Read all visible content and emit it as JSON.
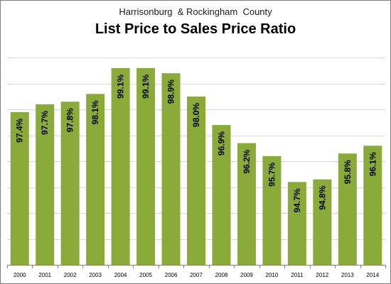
{
  "chart_data": {
    "type": "bar",
    "subtitle": "Harrisonburg  & Rockingham  County",
    "title": "List Price to Sales Price Ratio",
    "xlabel": "",
    "ylabel": "",
    "categories": [
      "2000",
      "2001",
      "2002",
      "2003",
      "2004",
      "2005",
      "2006",
      "2007",
      "2008",
      "2009",
      "2010",
      "2011",
      "2012",
      "2013",
      "2014"
    ],
    "values": [
      97.4,
      97.7,
      97.8,
      98.1,
      99.1,
      99.1,
      98.9,
      98.0,
      96.9,
      96.2,
      95.7,
      94.7,
      94.8,
      95.8,
      96.1
    ],
    "value_labels": [
      "97.4%",
      "97.7%",
      "97.8%",
      "98.1%",
      "99.1%",
      "99.1%",
      "98.9%",
      "98.0%",
      "96.9%",
      "96.2%",
      "95.7%",
      "94.7%",
      "94.8%",
      "95.8%",
      "96.1%"
    ],
    "ylim": [
      91.5,
      100.0
    ],
    "grid": true,
    "legend": "none",
    "colors": {
      "bar": "#8aaa3a",
      "grid": "#d9d9d9",
      "axis": "#808080"
    }
  }
}
